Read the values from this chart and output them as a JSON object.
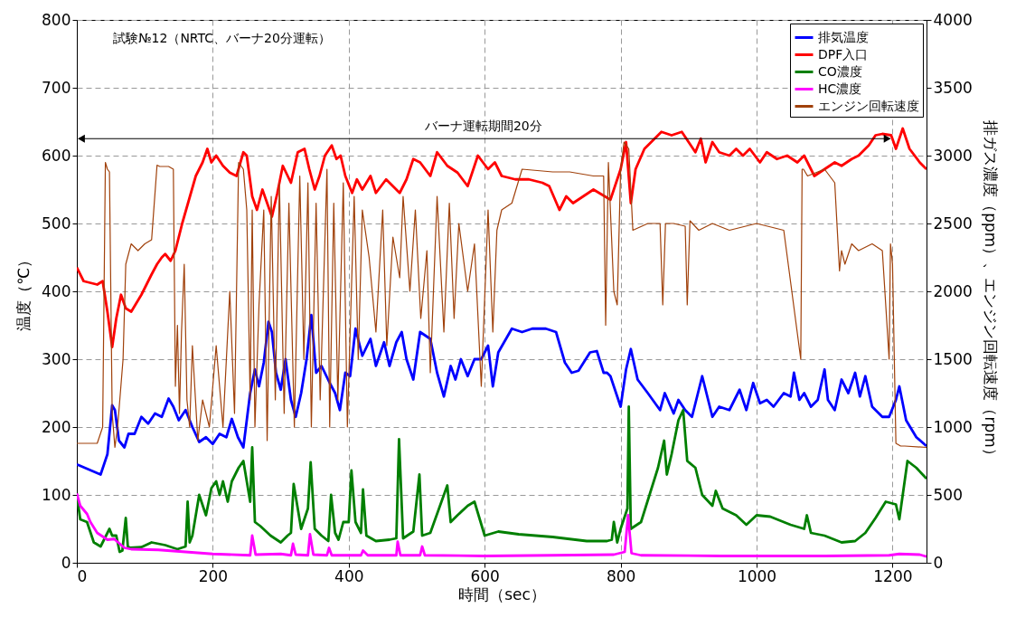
{
  "chart_data": {
    "type": "line",
    "xlabel": "時間（sec）",
    "ylabel": "温度（℃）",
    "y2label": "排ガス濃度（ppm）、エンジン回転速度（rpm）",
    "annotations": [
      "試験№12（NRTC、バーナ20分運転）"
    ],
    "ref_lines": [
      {
        "axis": "y",
        "value": 625,
        "label": "バーナ運転期間20分"
      }
    ],
    "xlim": [
      0,
      1250
    ],
    "xticks": [
      0,
      200,
      400,
      600,
      800,
      1000,
      1200
    ],
    "ylim": [
      0,
      800
    ],
    "yticks": [
      0,
      100,
      200,
      300,
      400,
      500,
      600,
      700,
      800
    ],
    "y2lim": [
      0,
      4000
    ],
    "y2ticks": [
      0,
      500,
      1000,
      1500,
      2000,
      2500,
      3000,
      3500,
      4000
    ],
    "grid": true,
    "legend": "top right",
    "series": [
      {
        "name": "排気温度",
        "color": "#0000ff",
        "x": [
          0,
          35,
          45,
          52,
          56,
          62,
          70,
          76,
          85,
          95,
          105,
          115,
          125,
          135,
          142,
          150,
          160,
          170,
          180,
          190,
          200,
          210,
          220,
          228,
          237,
          245,
          255,
          262,
          268,
          275,
          282,
          287,
          293,
          300,
          307,
          315,
          322,
          330,
          338,
          345,
          352,
          360,
          372,
          380,
          387,
          395,
          402,
          410,
          420,
          432,
          440,
          452,
          460,
          470,
          478,
          485,
          495,
          505,
          520,
          530,
          540,
          550,
          557,
          565,
          575,
          585,
          595,
          605,
          612,
          620,
          640,
          655,
          670,
          690,
          705,
          718,
          728,
          738,
          755,
          765,
          775,
          780,
          785,
          795,
          800,
          808,
          815,
          825,
          840,
          858,
          865,
          878,
          885,
          895,
          905,
          920,
          935,
          945,
          960,
          975,
          985,
          995,
          1005,
          1015,
          1025,
          1040,
          1050,
          1055,
          1063,
          1070,
          1080,
          1090,
          1100,
          1105,
          1115,
          1125,
          1135,
          1145,
          1152,
          1160,
          1170,
          1185,
          1195,
          1205,
          1210,
          1220,
          1235,
          1250
        ],
        "values": [
          145,
          130,
          160,
          232,
          225,
          180,
          170,
          190,
          190,
          215,
          205,
          220,
          215,
          242,
          230,
          210,
          225,
          200,
          178,
          185,
          175,
          190,
          185,
          212,
          185,
          170,
          250,
          285,
          260,
          295,
          355,
          340,
          280,
          255,
          300,
          240,
          215,
          250,
          300,
          365,
          280,
          290,
          265,
          250,
          225,
          280,
          275,
          345,
          305,
          330,
          290,
          325,
          290,
          325,
          340,
          300,
          270,
          340,
          330,
          280,
          245,
          290,
          270,
          300,
          275,
          300,
          300,
          320,
          260,
          310,
          345,
          340,
          345,
          345,
          340,
          295,
          280,
          283,
          310,
          312,
          280,
          280,
          275,
          245,
          230,
          285,
          315,
          270,
          250,
          225,
          250,
          220,
          240,
          225,
          215,
          275,
          215,
          230,
          225,
          255,
          225,
          265,
          235,
          240,
          230,
          250,
          245,
          280,
          240,
          250,
          230,
          240,
          285,
          240,
          225,
          270,
          250,
          280,
          245,
          275,
          230,
          215,
          215,
          240,
          260,
          210,
          185,
          172
        ]
      },
      {
        "name": "DPF入口",
        "color": "#ff0000",
        "x": [
          0,
          10,
          30,
          38,
          45,
          52,
          58,
          65,
          72,
          80,
          95,
          110,
          118,
          125,
          130,
          138,
          145,
          155,
          165,
          175,
          185,
          192,
          198,
          205,
          215,
          225,
          235,
          245,
          250,
          258,
          265,
          273,
          280,
          287,
          295,
          303,
          315,
          325,
          335,
          342,
          350,
          357,
          365,
          375,
          382,
          388,
          395,
          405,
          412,
          420,
          432,
          440,
          455,
          465,
          475,
          485,
          495,
          505,
          520,
          530,
          545,
          560,
          575,
          590,
          605,
          615,
          625,
          645,
          665,
          685,
          695,
          710,
          720,
          730,
          760,
          785,
          800,
          808,
          815,
          822,
          835,
          845,
          860,
          875,
          890,
          900,
          910,
          918,
          925,
          935,
          945,
          960,
          970,
          980,
          990,
          1005,
          1015,
          1030,
          1045,
          1060,
          1070,
          1085,
          1100,
          1115,
          1125,
          1140,
          1150,
          1165,
          1175,
          1185,
          1198,
          1205,
          1215,
          1225,
          1240,
          1250
        ],
        "values": [
          435,
          415,
          410,
          415,
          370,
          318,
          360,
          395,
          375,
          370,
          395,
          425,
          440,
          450,
          455,
          445,
          460,
          500,
          535,
          570,
          590,
          610,
          590,
          600,
          585,
          575,
          570,
          605,
          600,
          540,
          520,
          550,
          530,
          510,
          545,
          585,
          560,
          605,
          610,
          580,
          550,
          570,
          600,
          615,
          595,
          600,
          570,
          545,
          565,
          550,
          570,
          545,
          565,
          555,
          545,
          565,
          595,
          590,
          570,
          605,
          585,
          575,
          555,
          600,
          580,
          590,
          570,
          565,
          565,
          560,
          555,
          520,
          540,
          530,
          550,
          535,
          580,
          620,
          530,
          580,
          610,
          620,
          635,
          630,
          635,
          620,
          605,
          625,
          590,
          620,
          605,
          600,
          610,
          600,
          610,
          590,
          605,
          595,
          600,
          590,
          600,
          570,
          580,
          590,
          585,
          595,
          600,
          615,
          630,
          632,
          630,
          610,
          640,
          610,
          590,
          580
        ]
      },
      {
        "name": "CO濃度",
        "color": "#007f00",
        "axis": "y2",
        "x": [
          0,
          5,
          15,
          25,
          35,
          48,
          52,
          58,
          63,
          67,
          72,
          75,
          78,
          95,
          110,
          130,
          148,
          160,
          163,
          166,
          170,
          180,
          190,
          198,
          205,
          210,
          215,
          222,
          228,
          238,
          245,
          255,
          258,
          262,
          270,
          285,
          300,
          310,
          315,
          319,
          330,
          340,
          344,
          350,
          360,
          370,
          374,
          380,
          385,
          392,
          400,
          404,
          410,
          418,
          421,
          426,
          440,
          460,
          470,
          474,
          480,
          495,
          504,
          508,
          520,
          545,
          550,
          560,
          575,
          585,
          600,
          620,
          650,
          700,
          750,
          780,
          787,
          790,
          795,
          800,
          810,
          812,
          815,
          830,
          855,
          864,
          868,
          875,
          885,
          892,
          898,
          910,
          920,
          935,
          940,
          950,
          970,
          985,
          1000,
          1020,
          1050,
          1070,
          1074,
          1080,
          1100,
          1125,
          1145,
          1160,
          1175,
          1190,
          1205,
          1210,
          1222,
          1235,
          1250
        ],
        "values": [
          500,
          320,
          300,
          150,
          120,
          250,
          200,
          200,
          80,
          90,
          330,
          120,
          110,
          115,
          150,
          130,
          100,
          120,
          450,
          150,
          200,
          500,
          350,
          550,
          600,
          500,
          600,
          450,
          600,
          700,
          750,
          450,
          850,
          300,
          270,
          200,
          150,
          200,
          220,
          580,
          250,
          400,
          740,
          250,
          200,
          160,
          500,
          220,
          170,
          300,
          300,
          680,
          300,
          220,
          540,
          200,
          160,
          170,
          180,
          910,
          180,
          230,
          650,
          200,
          220,
          570,
          300,
          350,
          420,
          450,
          200,
          230,
          210,
          190,
          160,
          160,
          170,
          300,
          150,
          250,
          400,
          1150,
          250,
          300,
          700,
          900,
          650,
          800,
          1050,
          1125,
          750,
          700,
          500,
          420,
          530,
          400,
          350,
          280,
          350,
          340,
          280,
          250,
          350,
          220,
          200,
          150,
          160,
          220,
          330,
          450,
          430,
          320,
          750,
          700,
          620
        ]
      },
      {
        "name": "HC濃度",
        "color": "#ff00ff",
        "axis": "y2",
        "x": [
          0,
          5,
          15,
          20,
          30,
          45,
          55,
          70,
          80,
          120,
          160,
          200,
          255,
          258,
          263,
          300,
          315,
          318,
          322,
          340,
          343,
          348,
          368,
          371,
          375,
          418,
          421,
          428,
          470,
          472,
          476,
          505,
          508,
          512,
          600,
          700,
          790,
          806,
          811,
          816,
          830,
          950,
          1100,
          1195,
          1210,
          1240,
          1250
        ],
        "values": [
          510,
          420,
          360,
          300,
          220,
          170,
          175,
          110,
          100,
          95,
          80,
          65,
          55,
          200,
          60,
          65,
          55,
          140,
          60,
          55,
          210,
          60,
          55,
          110,
          55,
          55,
          90,
          55,
          55,
          155,
          55,
          55,
          120,
          55,
          50,
          55,
          60,
          80,
          350,
          70,
          55,
          50,
          50,
          55,
          65,
          60,
          45
        ]
      },
      {
        "name": "エンジン回転速度",
        "color": "#a0410b",
        "axis": "y2",
        "x": [
          0,
          30,
          38,
          42,
          45,
          48,
          52,
          56,
          60,
          68,
          72,
          80,
          90,
          100,
          110,
          118,
          122,
          135,
          142,
          145,
          148,
          151,
          154,
          158,
          162,
          166,
          170,
          178,
          185,
          195,
          205,
          215,
          225,
          232,
          238,
          245,
          250,
          255,
          258,
          262,
          268,
          275,
          280,
          286,
          292,
          298,
          305,
          312,
          320,
          328,
          334,
          340,
          345,
          352,
          358,
          368,
          372,
          378,
          384,
          392,
          398,
          408,
          414,
          420,
          430,
          440,
          450,
          456,
          465,
          475,
          480,
          490,
          498,
          506,
          515,
          520,
          530,
          540,
          548,
          555,
          562,
          575,
          585,
          595,
          605,
          612,
          618,
          625,
          640,
          655,
          700,
          725,
          760,
          775,
          778,
          782,
          790,
          795,
          800,
          805,
          812,
          818,
          840,
          858,
          862,
          866,
          878,
          895,
          898,
          902,
          915,
          935,
          960,
          1000,
          1040,
          1065,
          1067,
          1069,
          1075,
          1100,
          1115,
          1122,
          1125,
          1130,
          1140,
          1150,
          1170,
          1185,
          1195,
          1197,
          1200,
          1205,
          1212,
          1218,
          1250
        ],
        "values": [
          880,
          880,
          1000,
          2950,
          2900,
          2880,
          1100,
          850,
          1000,
          1500,
          2200,
          2350,
          2300,
          2350,
          2380,
          2930,
          2920,
          2920,
          2900,
          1300,
          1750,
          1100,
          1700,
          2200,
          1200,
          1000,
          1600,
          900,
          1200,
          1000,
          1600,
          1000,
          2000,
          1100,
          2950,
          2900,
          2600,
          1200,
          2600,
          1000,
          1900,
          2600,
          900,
          2700,
          1200,
          2800,
          1100,
          2650,
          1000,
          2850,
          1500,
          2800,
          1000,
          2650,
          1200,
          2900,
          1000,
          2650,
          1200,
          2800,
          1000,
          2700,
          1500,
          2600,
          2250,
          1700,
          2600,
          1600,
          2400,
          2100,
          2700,
          2000,
          2600,
          1800,
          2300,
          1400,
          2700,
          1700,
          2650,
          1800,
          2500,
          2000,
          2350,
          1300,
          2600,
          1700,
          2450,
          2600,
          2650,
          2900,
          2880,
          2880,
          2850,
          2850,
          1750,
          2950,
          2000,
          1900,
          2900,
          3100,
          3050,
          2450,
          2500,
          2500,
          1900,
          2500,
          2500,
          2480,
          1900,
          2520,
          2450,
          2500,
          2450,
          2500,
          2450,
          1500,
          2900,
          2900,
          2850,
          2900,
          2800,
          2150,
          2300,
          2200,
          2350,
          2300,
          2350,
          2300,
          1500,
          2350,
          2200,
          880,
          860,
          860,
          850
        ]
      }
    ]
  }
}
